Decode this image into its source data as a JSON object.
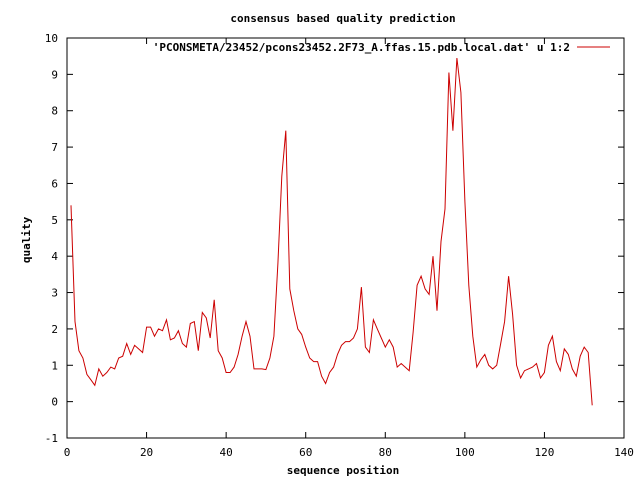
{
  "chart_data": {
    "type": "line",
    "title": "consensus based quality prediction",
    "xlabel": "sequence position",
    "ylabel": "quality",
    "xlim": [
      0,
      140
    ],
    "ylim": [
      -1,
      10
    ],
    "xticks": [
      0,
      20,
      40,
      60,
      80,
      100,
      120,
      140
    ],
    "yticks": [
      -1,
      0,
      1,
      2,
      3,
      4,
      5,
      6,
      7,
      8,
      9,
      10
    ],
    "grid": false,
    "legend_position": "top-right",
    "series": [
      {
        "name": "'PCONSMETA/23452/pcons23452.2F73_A.ffas.15.pdb.local.dat' u 1:2",
        "color": "#cc0000",
        "x": [
          1,
          2,
          3,
          4,
          5,
          6,
          7,
          8,
          9,
          10,
          11,
          12,
          13,
          14,
          15,
          16,
          17,
          18,
          19,
          20,
          21,
          22,
          23,
          24,
          25,
          26,
          27,
          28,
          29,
          30,
          31,
          32,
          33,
          34,
          35,
          36,
          37,
          38,
          39,
          40,
          41,
          42,
          43,
          44,
          45,
          46,
          47,
          48,
          49,
          50,
          51,
          52,
          53,
          54,
          55,
          56,
          57,
          58,
          59,
          60,
          61,
          62,
          63,
          64,
          65,
          66,
          67,
          68,
          69,
          70,
          71,
          72,
          73,
          74,
          75,
          76,
          77,
          78,
          79,
          80,
          81,
          82,
          83,
          84,
          85,
          86,
          87,
          88,
          89,
          90,
          91,
          92,
          93,
          94,
          95,
          96,
          97,
          98,
          99,
          100,
          101,
          102,
          103,
          104,
          105,
          106,
          107,
          108,
          109,
          110,
          111,
          112,
          113,
          114,
          115,
          116,
          117,
          118,
          119,
          120,
          121,
          122,
          123,
          124,
          125,
          126,
          127,
          128,
          129,
          130,
          131,
          132
        ],
        "values": [
          5.4,
          2.2,
          1.4,
          1.2,
          0.75,
          0.6,
          0.45,
          0.9,
          0.7,
          0.8,
          0.95,
          0.9,
          1.2,
          1.25,
          1.6,
          1.3,
          1.55,
          1.45,
          1.35,
          2.05,
          2.05,
          1.8,
          2.0,
          1.95,
          2.25,
          1.7,
          1.75,
          1.95,
          1.6,
          1.5,
          2.15,
          2.2,
          1.4,
          2.45,
          2.3,
          1.75,
          2.8,
          1.4,
          1.2,
          0.8,
          0.8,
          0.95,
          1.3,
          1.8,
          2.2,
          1.8,
          0.9,
          0.9,
          0.9,
          0.88,
          1.2,
          1.8,
          3.8,
          6.2,
          7.45,
          3.1,
          2.5,
          2.0,
          1.85,
          1.5,
          1.2,
          1.1,
          1.1,
          0.7,
          0.5,
          0.8,
          0.95,
          1.3,
          1.55,
          1.65,
          1.65,
          1.75,
          2.0,
          3.15,
          1.5,
          1.35,
          2.25,
          2.0,
          1.75,
          1.5,
          1.7,
          1.5,
          0.95,
          1.05,
          0.95,
          0.85,
          1.9,
          3.2,
          3.45,
          3.1,
          2.95,
          4.0,
          2.5,
          4.4,
          5.3,
          9.05,
          7.45,
          9.45,
          8.5,
          5.5,
          3.2,
          1.8,
          0.95,
          1.15,
          1.3,
          1.0,
          0.9,
          1.0,
          1.6,
          2.2,
          3.45,
          2.4,
          1.0,
          0.65,
          0.85,
          0.9,
          0.95,
          1.05,
          0.65,
          0.8,
          1.55,
          1.8,
          1.1,
          0.85,
          1.45,
          1.3,
          0.9,
          0.7,
          1.25,
          1.5,
          1.35,
          -0.1
        ]
      }
    ]
  }
}
